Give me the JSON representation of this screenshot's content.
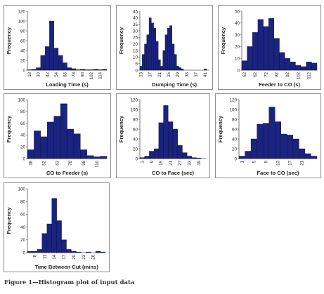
{
  "caption": "Figure 1—Histogram plot of input data",
  "colors": {
    "bar": "#1a237e",
    "bar_edge": "#0a0f3d",
    "axis": "#555555",
    "text": "#222222",
    "frame": "#8f8f8f"
  },
  "chart_data": [
    {
      "type": "bar",
      "title": "",
      "xlabel": "Loading Time (s)",
      "ylabel": "Frequency",
      "ylim": [
        0,
        120
      ],
      "yticks": [
        0,
        20,
        40,
        60,
        80,
        100,
        120
      ],
      "categories": [
        "18",
        "",
        "30",
        "",
        "42",
        "",
        "54",
        "",
        "66",
        "",
        "78",
        "",
        "90",
        "",
        "102",
        "",
        "114",
        ""
      ],
      "values": [
        1,
        2,
        5,
        30,
        48,
        100,
        45,
        30,
        15,
        5,
        3,
        1,
        2,
        1,
        1,
        2,
        1,
        2
      ]
    },
    {
      "type": "bar",
      "title": "",
      "xlabel": "Dumping Time (s)",
      "ylabel": "Frequency",
      "ylim": [
        0,
        45
      ],
      "yticks": [
        0,
        5,
        10,
        15,
        20,
        25,
        30,
        35,
        40,
        45
      ],
      "categories": [
        "13",
        "",
        "",
        "",
        "17",
        "",
        "",
        "",
        "21",
        "",
        "",
        "",
        "25",
        "",
        "",
        "",
        "29",
        "",
        "",
        "",
        "33",
        "",
        "",
        "",
        "37",
        "",
        "",
        "",
        "41",
        ""
      ],
      "values": [
        3,
        12,
        20,
        27,
        40,
        36,
        32,
        22,
        8,
        3,
        15,
        27,
        32,
        34,
        20,
        12,
        3,
        2,
        1,
        0,
        0,
        0,
        0,
        0,
        0,
        0,
        0,
        0,
        1,
        0
      ]
    },
    {
      "type": "bar",
      "title": "",
      "xlabel": "Feeder to CO (s)",
      "ylabel": "Frequency",
      "ylim": [
        0,
        50
      ],
      "yticks": [
        0,
        10,
        20,
        30,
        40,
        50
      ],
      "categories": [
        "52",
        "",
        "62",
        "",
        "72",
        "",
        "82",
        "",
        "92",
        "",
        "102",
        "",
        "112",
        ""
      ],
      "values": [
        8,
        20,
        32,
        43,
        37,
        44,
        27,
        15,
        10,
        7,
        4,
        3,
        7,
        6
      ]
    },
    {
      "type": "bar",
      "title": "",
      "xlabel": "CO to Feeder (s)",
      "ylabel": "Frequency",
      "ylim": [
        0,
        100
      ],
      "yticks": [
        0,
        20,
        40,
        60,
        80,
        100
      ],
      "categories": [
        "38",
        "",
        "52",
        "",
        "63",
        "",
        "78",
        "",
        "98",
        "",
        "110",
        ""
      ],
      "values": [
        15,
        47,
        37,
        62,
        72,
        93,
        50,
        42,
        15,
        5,
        3,
        4
      ]
    },
    {
      "type": "bar",
      "title": "",
      "xlabel": "CO to Face (sec)",
      "ylabel": "Frequency",
      "ylim": [
        0,
        120
      ],
      "yticks": [
        0,
        20,
        40,
        60,
        80,
        100,
        120
      ],
      "categories": [
        "3",
        "",
        "9",
        "",
        "15",
        "",
        "21",
        "",
        "27",
        "",
        "33",
        "",
        "39",
        ""
      ],
      "values": [
        2,
        5,
        15,
        20,
        73,
        108,
        75,
        60,
        27,
        12,
        5,
        2,
        1,
        0
      ]
    },
    {
      "type": "bar",
      "title": "",
      "xlabel": "Face to CO (sec)",
      "ylabel": "Frequency",
      "ylim": [
        0,
        120
      ],
      "yticks": [
        0,
        20,
        40,
        60,
        80,
        100,
        120
      ],
      "categories": [
        "1",
        "",
        "5",
        "",
        "9",
        "",
        "13",
        "",
        "17",
        "",
        "21",
        "",
        ""
      ],
      "values": [
        5,
        15,
        40,
        70,
        72,
        105,
        75,
        50,
        48,
        40,
        20,
        10,
        5
      ]
    },
    {
      "type": "bar",
      "title": "",
      "xlabel": "Time Between Cut (mins)",
      "ylabel": "Frequency",
      "ylim": [
        0,
        100
      ],
      "yticks": [
        0,
        20,
        40,
        60,
        80,
        100
      ],
      "categories": [
        "",
        "8",
        "",
        "11",
        "",
        "14",
        "",
        "17",
        "",
        "20",
        "",
        "23",
        "",
        "26",
        "",
        ""
      ],
      "values": [
        2,
        2,
        5,
        30,
        45,
        85,
        50,
        20,
        5,
        2,
        1,
        0,
        1,
        0,
        2,
        1
      ]
    }
  ]
}
